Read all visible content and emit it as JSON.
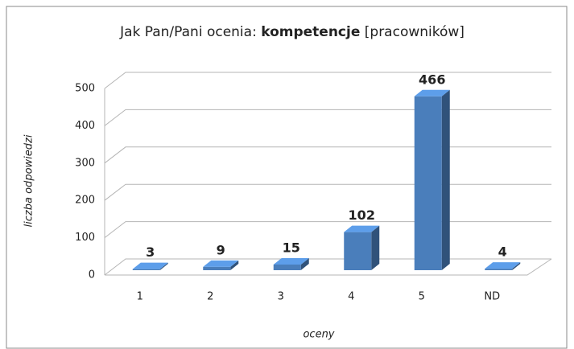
{
  "chart_data": {
    "type": "bar3d",
    "title": [
      "Jak Pan/Pani ocenia:",
      "kompetencje",
      "[pracowników]"
    ],
    "x_label": "oceny",
    "y_label": "liczba odpowiedzi",
    "categories": [
      "1",
      "2",
      "3",
      "4",
      "5",
      "ND"
    ],
    "values": [
      3,
      9,
      15,
      102,
      466,
      4
    ],
    "color": "#4a7ebb",
    "ylim": [
      0,
      500
    ],
    "yticks": [
      0,
      100,
      200,
      300,
      400,
      500
    ],
    "grid": true
  }
}
